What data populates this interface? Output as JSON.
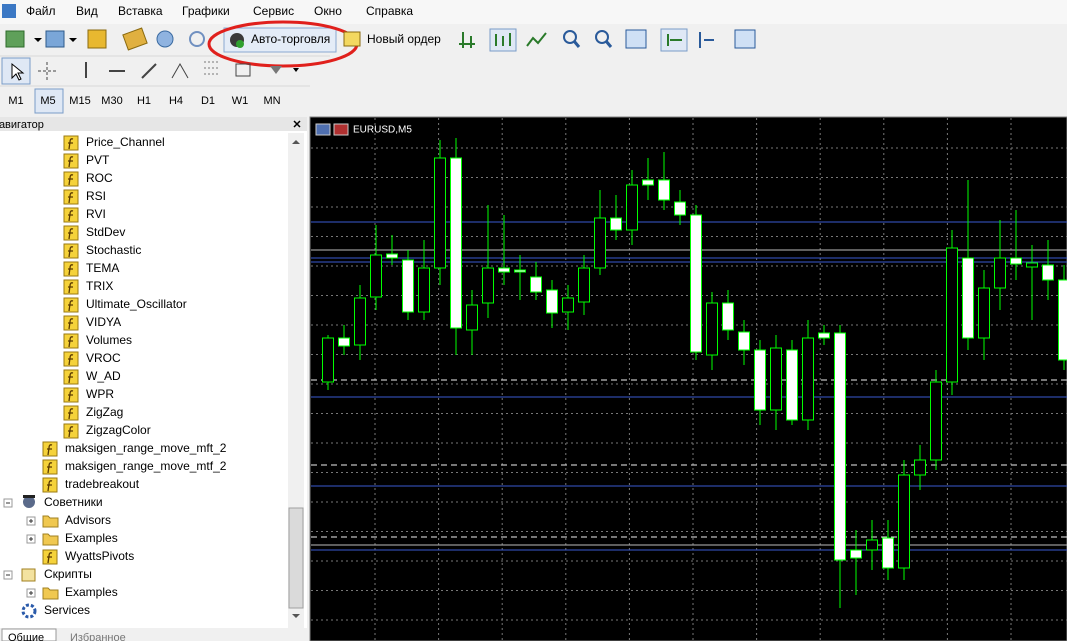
{
  "menu": [
    "Файл",
    "Вид",
    "Вставка",
    "Графики",
    "Сервис",
    "Окно",
    "Справка"
  ],
  "toolbar": {
    "auto_trading": "Авто-торговля",
    "new_order": "Новый ордер"
  },
  "timeframes": {
    "items": [
      "M1",
      "M5",
      "M15",
      "M30",
      "H1",
      "H4",
      "D1",
      "W1",
      "MN"
    ],
    "active": "M5"
  },
  "navigator": {
    "title": "Навигатор",
    "indicators": [
      "Price_Channel",
      "PVT",
      "ROC",
      "RSI",
      "RVI",
      "StdDev",
      "Stochastic",
      "TEMA",
      "TRIX",
      "Ultimate_Oscillator",
      "VIDYA",
      "Volumes",
      "VROC",
      "W_AD",
      "WPR",
      "ZigZag",
      "ZigzagColor"
    ],
    "custom": [
      "maksigen_range_move_mft_2",
      "maksigen_range_move_mtf_2",
      "tradebreakout"
    ],
    "experts": {
      "label": "Советники",
      "items": [
        "Advisors",
        "Examples",
        "WyattsPivots"
      ]
    },
    "scripts": {
      "label": "Скрипты",
      "items": [
        "Examples"
      ]
    },
    "services": "Services",
    "tabs": [
      "Общие",
      "Избранное"
    ]
  },
  "chart": {
    "type": "candlestick",
    "title": "EURUSD,M5",
    "ylim": [
      0,
      521
    ],
    "bull_color": "#000000",
    "bear_color": "#ffffff",
    "wick_color": "#00ff00",
    "open": [
      259,
      303,
      296,
      344,
      387,
      381,
      329,
      373,
      483,
      311,
      338,
      373,
      371,
      364,
      351,
      329,
      339,
      373,
      423,
      411,
      461,
      461,
      439,
      426,
      286,
      338,
      309,
      291,
      231,
      291,
      221,
      308,
      308,
      91,
      91,
      103,
      73,
      166,
      181,
      259,
      383,
      303,
      353,
      383,
      374,
      376,
      361
    ],
    "high": [
      306,
      316,
      356,
      416,
      406,
      391,
      401,
      501,
      503,
      351,
      436,
      426,
      386,
      379,
      361,
      356,
      386,
      451,
      446,
      471,
      483,
      489,
      451,
      436,
      349,
      351,
      321,
      301,
      306,
      301,
      321,
      316,
      316,
      111,
      121,
      121,
      181,
      196,
      271,
      411,
      461,
      371,
      421,
      431,
      396,
      401,
      376
    ],
    "low": [
      251,
      286,
      281,
      331,
      376,
      321,
      321,
      356,
      286,
      286,
      323,
      356,
      341,
      341,
      313,
      311,
      326,
      366,
      401,
      396,
      441,
      431,
      416,
      281,
      271,
      301,
      276,
      216,
      211,
      216,
      211,
      296,
      33,
      46,
      71,
      61,
      61,
      151,
      171,
      246,
      291,
      281,
      331,
      361,
      321,
      341,
      271
    ],
    "close": [
      303,
      295,
      343,
      386,
      383,
      329,
      373,
      483,
      313,
      336,
      373,
      369,
      369,
      349,
      328,
      343,
      373,
      423,
      411,
      456,
      456,
      441,
      426,
      289,
      338,
      311,
      291,
      231,
      293,
      221,
      303,
      303,
      81,
      83,
      101,
      73,
      166,
      181,
      259,
      393,
      303,
      353,
      383,
      377,
      378,
      361,
      281
    ]
  }
}
